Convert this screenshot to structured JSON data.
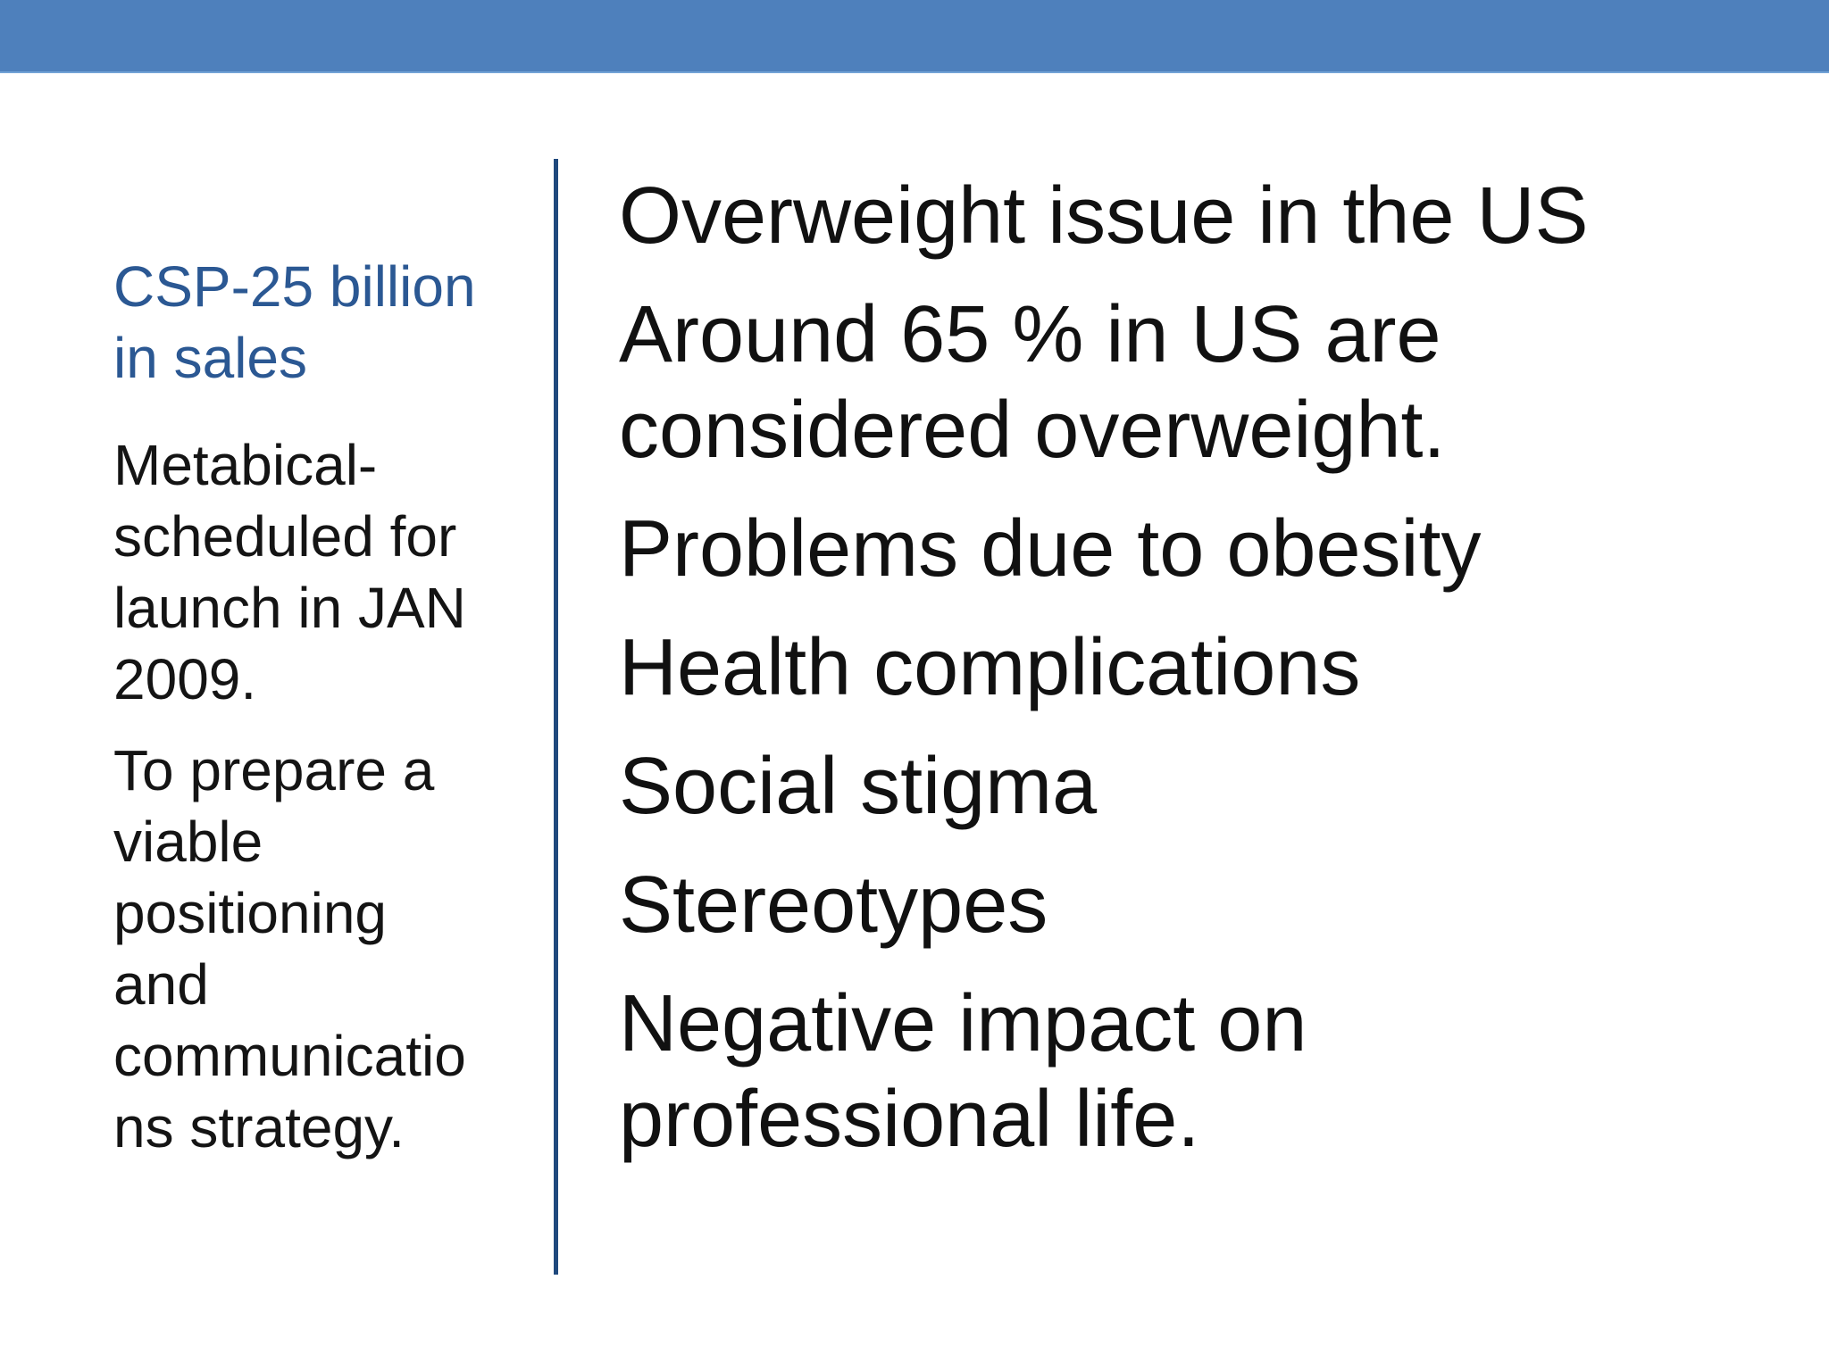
{
  "slide": {
    "colors": {
      "top_bar": "#4e80bc",
      "divider": "#1f497d",
      "sidebar_heading": "#2b5893",
      "body_text": "#111111",
      "background": "#ffffff"
    },
    "sidebar": {
      "heading": "CSP-25 billion in sales",
      "paragraphs": [
        "Metabical-scheduled for launch in JAN 2009.",
        "To prepare a viable positioning and communications strategy."
      ]
    },
    "content": {
      "items": [
        "Overweight issue in the US",
        "Around 65 % in US are considered overweight.",
        "Problems due to obesity",
        "Health complications",
        "Social stigma",
        "Stereotypes",
        "Negative impact on professional life."
      ]
    }
  }
}
